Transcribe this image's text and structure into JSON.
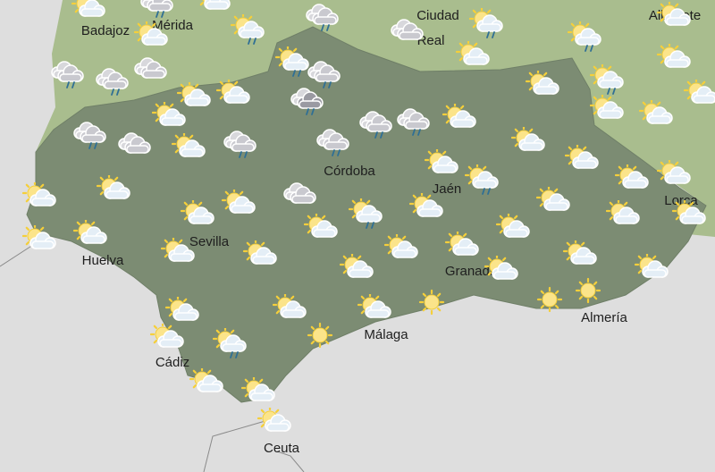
{
  "map": {
    "colors": {
      "sea": "#dedede",
      "neighbor_land": "#a9bd8e",
      "andalusia": "#7c8c73",
      "border": "#8a8a8a",
      "sun": "#f5cf3a",
      "rain": "#2f6f95"
    },
    "cities": [
      {
        "name": "Badajoz"
      },
      {
        "name": "Mérida"
      },
      {
        "name": "Ciudad"
      },
      {
        "name": "Real"
      },
      {
        "name": "Albacete"
      },
      {
        "name": "Córdoba"
      },
      {
        "name": "Jaén"
      },
      {
        "name": "Lorca"
      },
      {
        "name": "Sevilla"
      },
      {
        "name": "Huelva"
      },
      {
        "name": "Granada"
      },
      {
        "name": "Almería"
      },
      {
        "name": "Málaga"
      },
      {
        "name": "Cádiz"
      },
      {
        "name": "Ceuta"
      }
    ],
    "forecast_icons": [
      "sun-cloud",
      "cloud-rain",
      "sun-cloud",
      "cloud-rain",
      "sun-cloud-rain",
      "sun-cloud",
      "sun-cloud-rain",
      "cloud",
      "sun-cloud-rain",
      "sun-cloud",
      "sun-cloud",
      "sun-cloud",
      "cloud-rain",
      "cloud-rain",
      "cloud",
      "sun-cloud-rain",
      "cloud-rain",
      "sun-cloud",
      "sun-cloud-rain",
      "sun-cloud",
      "sun-cloud",
      "dark-cloud-rain",
      "sun-cloud",
      "sun-cloud",
      "cloud-rain",
      "cloud-rain",
      "sun-cloud",
      "sun-cloud",
      "sun-cloud",
      "cloud-rain",
      "cloud",
      "sun-cloud",
      "cloud-rain",
      "cloud-rain",
      "sun-cloud",
      "sun-cloud",
      "sun-cloud",
      "sun-cloud-rain",
      "sun-cloud",
      "sun-cloud",
      "sun-cloud",
      "sun-cloud",
      "cloud",
      "sun-cloud",
      "sun-cloud",
      "sun-cloud",
      "sun-cloud-rain",
      "sun-cloud",
      "sun-cloud",
      "sun-cloud",
      "sun-cloud",
      "sun-cloud",
      "sun-cloud",
      "sun-cloud",
      "sun-cloud",
      "sun-cloud",
      "sun-cloud",
      "sun-cloud",
      "sun-cloud",
      "sun-cloud",
      "sun-cloud",
      "sun-cloud",
      "sun-cloud",
      "sun-cloud",
      "sun",
      "sun-cloud",
      "sun",
      "sun",
      "sun-cloud",
      "sun-cloud-rain",
      "sun",
      "sun-cloud",
      "sun-cloud",
      "sun-cloud"
    ]
  }
}
